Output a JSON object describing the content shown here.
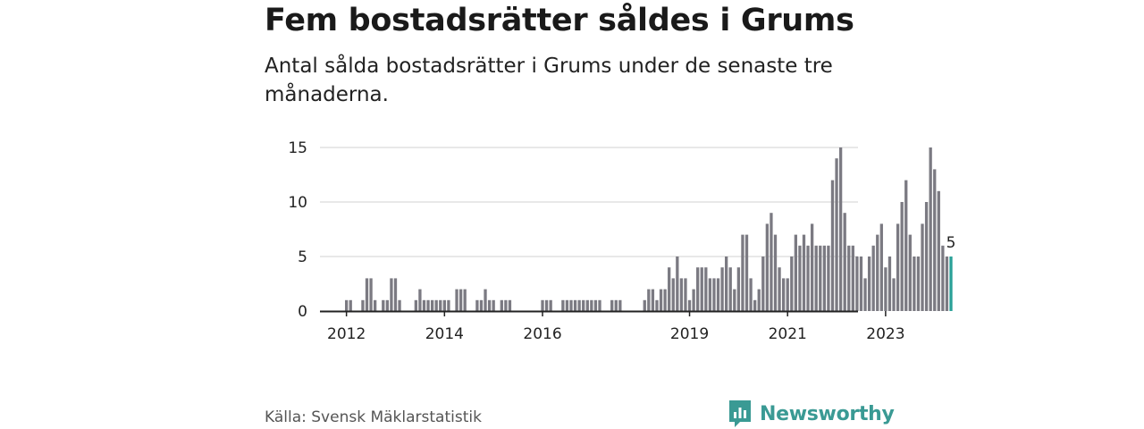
{
  "title": "Fem bostadsrätter såldes i Grums",
  "subtitle": "Antal sålda bostadsrätter i Grums under de senaste tre månaderna.",
  "source": "Källa: Svensk Mäklarstatistik",
  "brand": "Newsworthy",
  "colors": {
    "bar": "#7b7a82",
    "highlight": "#2aa198",
    "grid": "#d9d9d9",
    "axis": "#222222",
    "brand": "#3a9a94"
  },
  "chart_data": {
    "type": "bar",
    "x_start": "2012-01",
    "frequency": "monthly",
    "x_tick_labels": [
      "2012",
      "2014",
      "2016",
      "2019",
      "2021",
      "2023"
    ],
    "y_ticks": [
      0,
      5,
      10,
      15
    ],
    "ylim": [
      0,
      15
    ],
    "grid": true,
    "highlight_last": true,
    "last_label": "5",
    "values": [
      1,
      1,
      0,
      0,
      1,
      3,
      3,
      1,
      0,
      1,
      1,
      3,
      3,
      1,
      0,
      0,
      0,
      1,
      2,
      1,
      1,
      1,
      1,
      1,
      1,
      1,
      0,
      2,
      2,
      2,
      0,
      0,
      1,
      1,
      2,
      1,
      1,
      0,
      1,
      1,
      1,
      0,
      0,
      0,
      0,
      0,
      0,
      0,
      1,
      1,
      1,
      0,
      0,
      1,
      1,
      1,
      1,
      1,
      1,
      1,
      1,
      1,
      1,
      0,
      0,
      1,
      1,
      1,
      0,
      0,
      0,
      0,
      0,
      1,
      2,
      2,
      1,
      2,
      2,
      4,
      3,
      5,
      3,
      3,
      1,
      2,
      4,
      4,
      4,
      3,
      3,
      3,
      4,
      5,
      4,
      2,
      4,
      7,
      7,
      3,
      1,
      2,
      5,
      8,
      9,
      7,
      4,
      3,
      3,
      5,
      7,
      6,
      7,
      6,
      8,
      6,
      6,
      6,
      6,
      12,
      14,
      15,
      9,
      6,
      6,
      5,
      5,
      3,
      5,
      6,
      7,
      8,
      4,
      5,
      3,
      8,
      10,
      12,
      7,
      5,
      5,
      8,
      10,
      15,
      13,
      11,
      6,
      5,
      5
    ]
  }
}
